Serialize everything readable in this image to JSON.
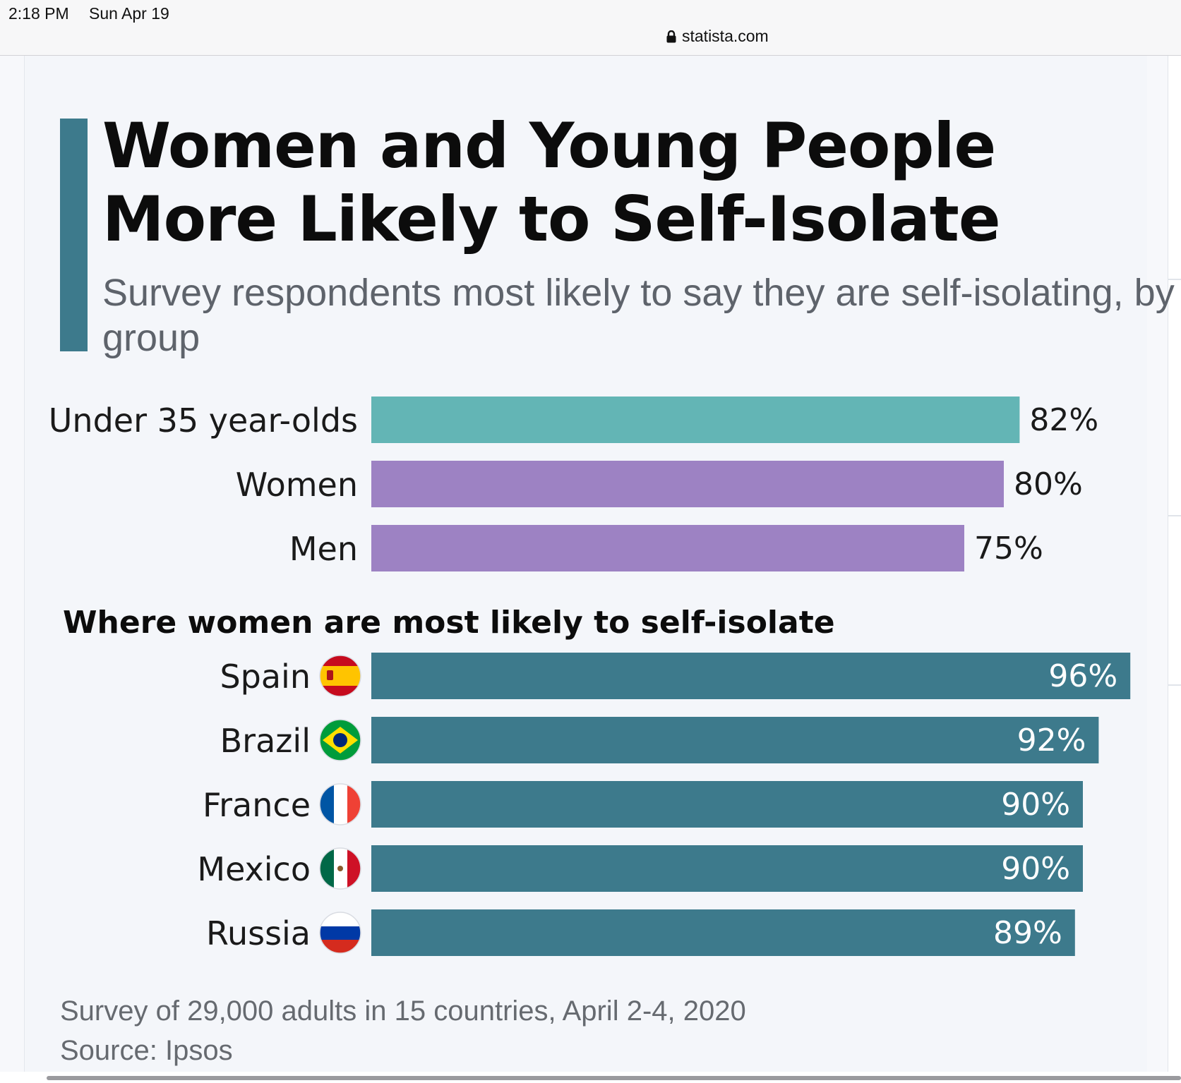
{
  "status_bar": {
    "time": "2:18 PM",
    "date": "Sun Apr 19",
    "url": "statista.com"
  },
  "colors": {
    "accent": "#3d7a8c",
    "teal": "#63b5b5",
    "purple": "#9d82c3",
    "country_bar": "#3d7a8c"
  },
  "chart_data": [
    {
      "type": "bar",
      "orientation": "horizontal",
      "title": "Women and Young People More Likely to Self-Isolate",
      "subtitle": "Survey respondents most likely to say they are self-isolating, by group",
      "categories": [
        "Under 35 year-olds",
        "Women",
        "Men"
      ],
      "values": [
        82,
        80,
        75
      ],
      "value_labels": [
        "82%",
        "80%",
        "75%"
      ],
      "bar_colors": [
        "#63b5b5",
        "#9d82c3",
        "#9d82c3"
      ],
      "xlim": [
        0,
        100
      ],
      "grid": false
    },
    {
      "type": "bar",
      "orientation": "horizontal",
      "title": "Where women are most likely to self-isolate",
      "categories": [
        "Spain",
        "Brazil",
        "France",
        "Mexico",
        "Russia"
      ],
      "values": [
        96,
        92,
        90,
        90,
        89
      ],
      "value_labels": [
        "96%",
        "92%",
        "90%",
        "90%",
        "89%"
      ],
      "flags": [
        "spain-flag-icon",
        "brazil-flag-icon",
        "france-flag-icon",
        "mexico-flag-icon",
        "russia-flag-icon"
      ],
      "bar_color": "#3d7a8c",
      "xlim": [
        0,
        100
      ],
      "grid": false
    }
  ],
  "footnote": {
    "survey": "Survey of 29,000 adults in 15 countries, April 2-4, 2020",
    "source": "Source: Ipsos"
  }
}
